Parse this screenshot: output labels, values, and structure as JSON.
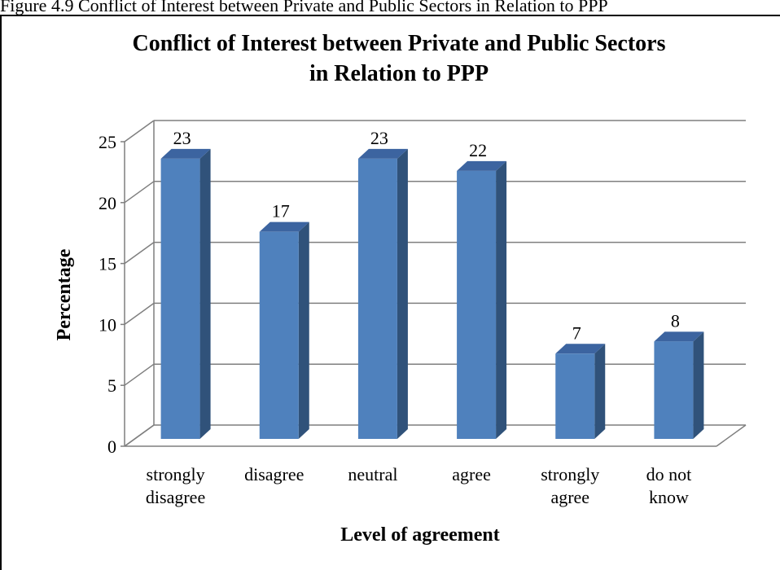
{
  "caption": "Figure 4.9 Conflict of Interest between Private and Public Sectors in Relation to PPP",
  "colors": {
    "bar_front": "#4f81bd",
    "bar_side": "#30527a",
    "bar_top": "#3c64a0",
    "grid": "#7f7f7f"
  },
  "chart_data": {
    "type": "bar",
    "title": [
      "Conflict of Interest between Private and Public Sectors",
      "in Relation to PPP"
    ],
    "xlabel": "Level of agreement",
    "ylabel": "Percentage",
    "categories": [
      [
        "strongly",
        "disagree"
      ],
      [
        "disagree"
      ],
      [
        "neutral"
      ],
      [
        "agree"
      ],
      [
        "strongly",
        "agree"
      ],
      [
        "do not",
        "know"
      ]
    ],
    "values": [
      23,
      17,
      23,
      22,
      7,
      8
    ],
    "ylim": [
      0,
      25
    ],
    "yticks": [
      0,
      5,
      10,
      15,
      20,
      25
    ],
    "data_labels": true,
    "grid": true,
    "legend": "none",
    "style": "3d-column"
  }
}
